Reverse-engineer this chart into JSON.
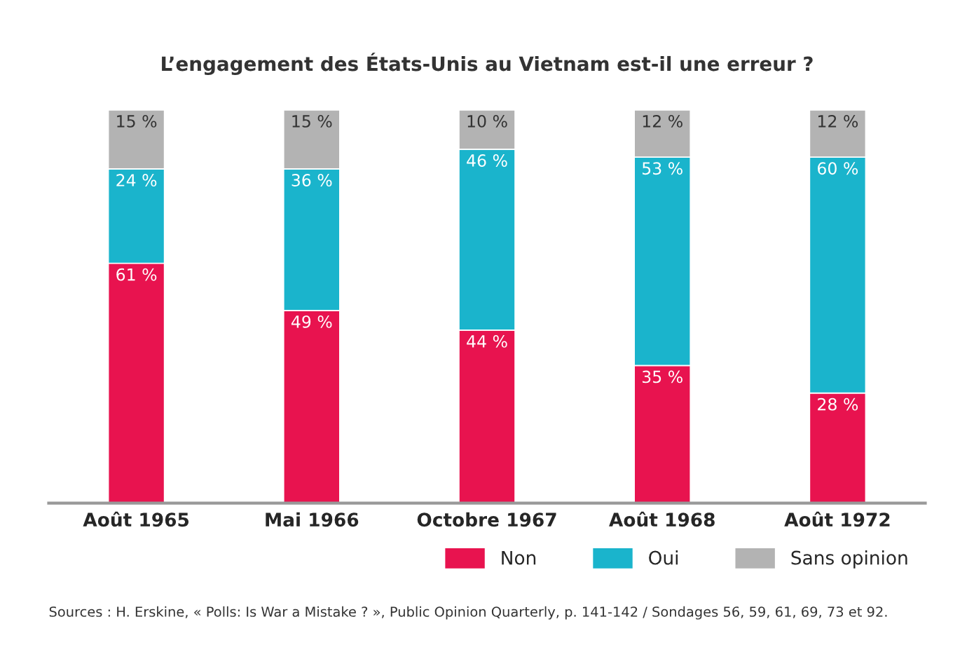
{
  "chart_data": {
    "type": "bar",
    "title": "L’engagement des États-Unis au Vietnam est-il une erreur ?",
    "categories": [
      "Août 1965",
      "Mai 1966",
      "Octobre 1967",
      "Août 1968",
      "Août 1972"
    ],
    "stacked": true,
    "series": [
      {
        "name": "Non",
        "color": "#e8134f",
        "values": [
          61,
          49,
          44,
          35,
          28
        ],
        "value_labels": [
          "61 %",
          "49 %",
          "44 %",
          "35 %",
          "28 %"
        ]
      },
      {
        "name": "Oui",
        "color": "#1ab4cc",
        "values": [
          24,
          36,
          46,
          53,
          60
        ],
        "value_labels": [
          "24 %",
          "36 %",
          "46 %",
          "53 %",
          "60 %"
        ]
      },
      {
        "name": "Sans opinion",
        "color": "#b3b3b3",
        "values": [
          15,
          15,
          10,
          12,
          12
        ],
        "value_labels": [
          "15 %",
          "15 %",
          "10 %",
          "12 %",
          "12 %"
        ]
      }
    ],
    "legend": "bottom right",
    "grid": false,
    "annotations": [
      "Sources : H. Erskine, « Polls: Is War a Mistake ? », Public Opinion Quarterly, p. 141-142 / Sondages 56, 59, 61, 69, 73 et 92."
    ]
  }
}
